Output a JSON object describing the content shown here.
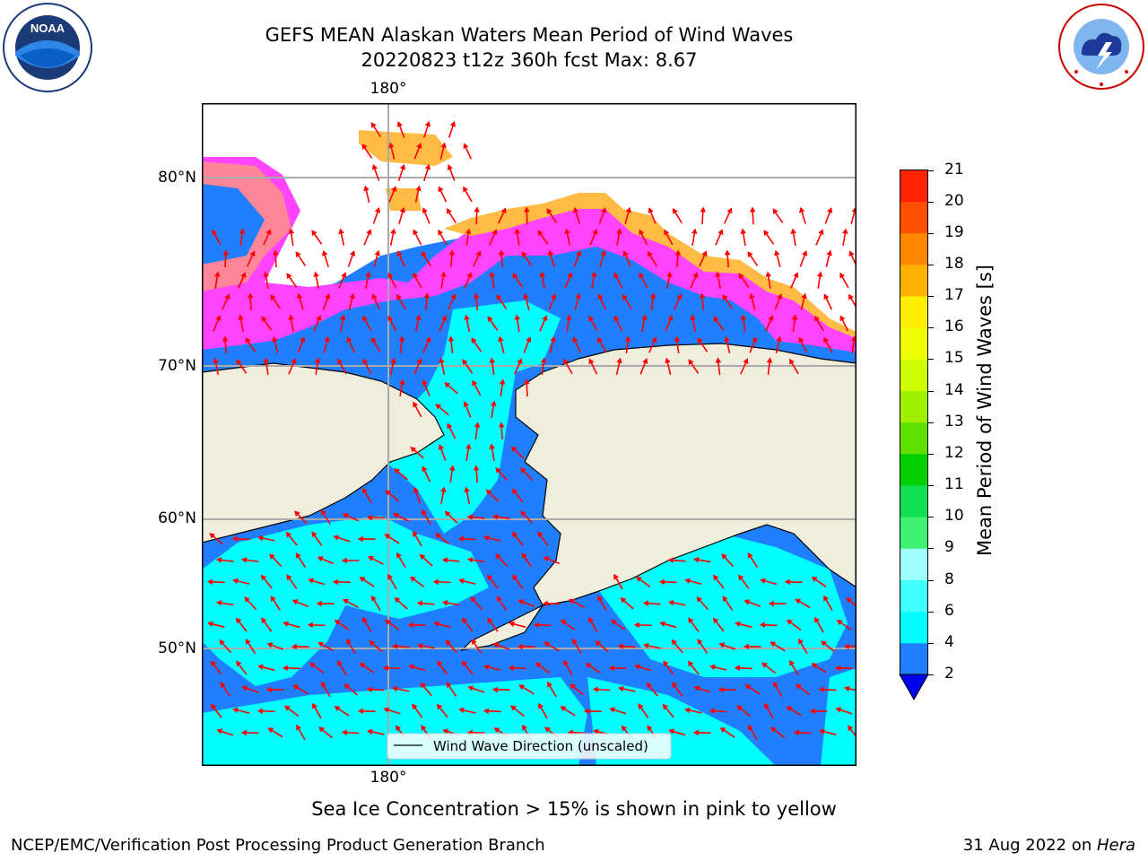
{
  "title_line1": "GEFS MEAN Alaskan Waters Mean Period of Wind Waves",
  "title_line2": "20220823 t12z 360h fcst   Max: 8.67",
  "logos": {
    "noaa_text": "NOAA",
    "noaa_ring": "NATIONAL OCEANIC AND ATMOSPHERIC ADMINISTRATION · U.S. DEPARTMENT OF COMMERCE",
    "nws_ring": "NATIONAL WEATHER SERVICE"
  },
  "map": {
    "lon_label_top": "180°",
    "lon_label_bottom": "180°",
    "lat_labels": [
      "80°N",
      "70°N",
      "60°N",
      "50°N"
    ],
    "legend_label": "Wind Wave Direction (unscaled)",
    "colors": {
      "land": "#efeedd",
      "sea_dark": "#1f7fff",
      "sea_light": "#00ffff",
      "ice_pink": "#ff44ff",
      "ice_orange": "#ffbb44",
      "arrow": "#ff0000"
    }
  },
  "colorbar": {
    "label": "Mean Period of Wind Waves [s]",
    "ticks": [
      "2",
      "4",
      "6",
      "8",
      "9",
      "10",
      "11",
      "12",
      "13",
      "14",
      "15",
      "16",
      "17",
      "18",
      "19",
      "20",
      "21"
    ],
    "colors": [
      "#1f7fff",
      "#00ffff",
      "#40ffff",
      "#a0ffff",
      "#40f070",
      "#10e050",
      "#00d000",
      "#60e000",
      "#a0f000",
      "#d0ff00",
      "#f0ff00",
      "#ffee00",
      "#ffb000",
      "#ff8800",
      "#ff5000",
      "#ff2200"
    ],
    "extend_color": "#0000ee"
  },
  "ice_note": "Sea Ice Concentration > 15% is shown in pink to yellow",
  "footer_left": "NCEP/EMC/Verification Post Processing Product Generation Branch",
  "footer_right_prefix": "31 Aug 2022 on ",
  "footer_right_host": "Hera"
}
